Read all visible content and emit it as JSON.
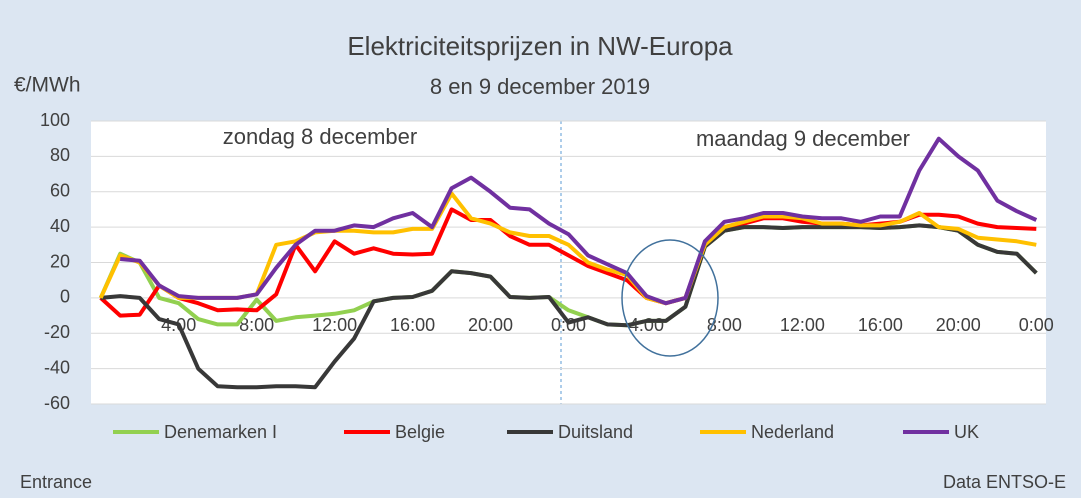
{
  "chart_data": {
    "type": "line",
    "title": "Elektriciteitsprijzen in NW-Europa",
    "subtitle": "8 en 9 december 2019",
    "y_label": "€/MWh",
    "annotations": [
      "zondag 8 december",
      "maandag 9 december"
    ],
    "footer_left": "Entrance",
    "footer_right": "Data ENTSO-E",
    "categories": [
      null,
      null,
      null,
      null,
      "4:00",
      null,
      null,
      null,
      "8:00",
      null,
      null,
      null,
      "12:00",
      null,
      null,
      null,
      "16:00",
      null,
      null,
      null,
      "20:00",
      null,
      null,
      null,
      "0:00",
      null,
      null,
      null,
      "4:00",
      null,
      null,
      null,
      "8:00",
      null,
      null,
      null,
      "12:00",
      null,
      null,
      null,
      "16:00",
      null,
      null,
      null,
      "20:00",
      null,
      null,
      null,
      "0:00"
    ],
    "ylim": [
      -60,
      100
    ],
    "yticks": [
      -60,
      -40,
      -20,
      0,
      20,
      40,
      60,
      80,
      100
    ],
    "grid": true,
    "legend": "bottom",
    "series": [
      {
        "name": "Denemarken I",
        "color": "#92d050",
        "values": [
          0,
          25,
          20,
          0,
          -3,
          -12,
          -15,
          -15,
          -1,
          -13,
          -11,
          -10,
          -9,
          -7,
          -2,
          0,
          0.5,
          4,
          15,
          14,
          12,
          0.5,
          0,
          0.5,
          -7,
          -11,
          -15,
          -15.5,
          -13,
          -13,
          -5,
          29,
          38,
          40,
          40,
          39.5,
          40,
          40,
          40,
          40,
          39.5,
          40,
          41,
          40,
          38,
          30,
          26,
          25,
          14
        ]
      },
      {
        "name": "Belgie",
        "color": "#ff0000",
        "values": [
          0,
          -10,
          -9.5,
          7,
          0,
          -3,
          -7,
          -6.5,
          -7,
          2,
          30,
          15,
          32,
          25,
          28,
          25,
          24.5,
          25,
          50,
          44,
          44,
          35,
          30,
          30,
          24,
          18,
          14,
          10,
          0,
          -3,
          0,
          30,
          40,
          42,
          45,
          45,
          43,
          42,
          42,
          41,
          42,
          43,
          47,
          47,
          46,
          42,
          40,
          39.5,
          39
        ]
      },
      {
        "name": "Duitsland",
        "color": "#383838",
        "values": [
          0,
          1,
          0,
          -12,
          -15,
          -40,
          -50,
          -50.5,
          -50.5,
          -50,
          -50,
          -50.5,
          -36,
          -23,
          -2,
          0,
          0.5,
          4,
          15,
          14,
          12,
          0.5,
          0,
          0.5,
          -14,
          -11,
          -15,
          -15.5,
          -13,
          -13,
          -5,
          29,
          38,
          40,
          40,
          39.5,
          40,
          40,
          40,
          40,
          39.5,
          40,
          41,
          40,
          38,
          30,
          26,
          25,
          14
        ]
      },
      {
        "name": "Nederland",
        "color": "#ffc000",
        "values": [
          0,
          24,
          20,
          7,
          0,
          0,
          0,
          0,
          2,
          30,
          32,
          37,
          38,
          38,
          37,
          37,
          39,
          39,
          59,
          45,
          42,
          37,
          35,
          35,
          30,
          20,
          16,
          13,
          0,
          -3,
          0,
          30,
          40,
          43,
          46,
          46,
          45,
          42,
          42,
          41,
          41,
          43,
          48,
          40,
          39,
          34,
          33,
          32,
          30
        ]
      },
      {
        "name": "UK",
        "color": "#7030a0",
        "values": [
          null,
          22,
          21,
          7,
          1,
          0,
          0,
          0,
          2,
          17,
          30,
          38,
          38,
          41,
          40,
          45,
          48,
          40,
          62,
          68,
          60,
          51,
          50,
          42,
          36,
          24,
          19,
          14,
          1,
          -3,
          0,
          32,
          43,
          45,
          48,
          48,
          46,
          45,
          45,
          43,
          46,
          46,
          72,
          90,
          80,
          72,
          55,
          49,
          44
        ]
      }
    ]
  }
}
